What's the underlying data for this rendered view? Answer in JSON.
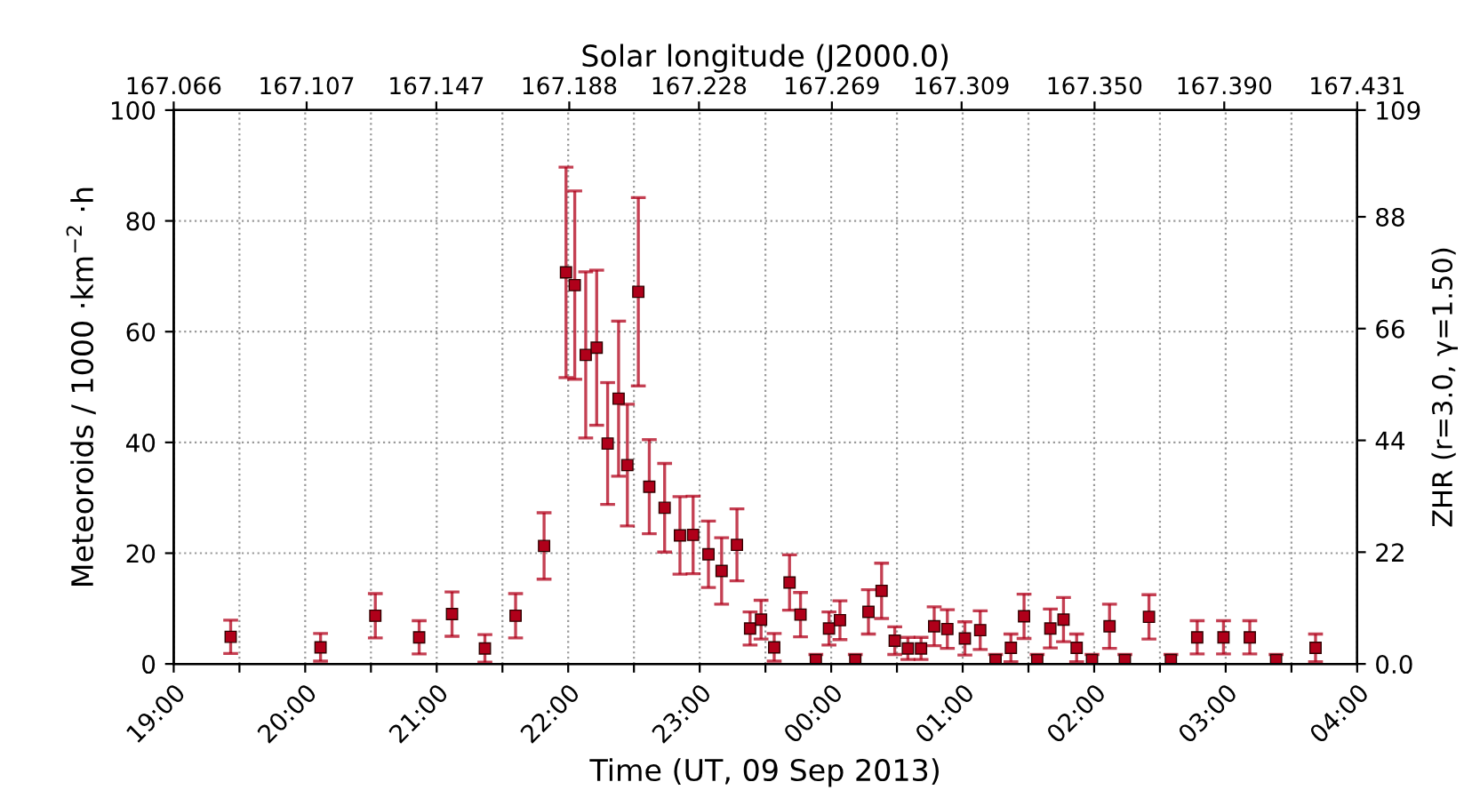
{
  "chart_data": {
    "type": "scatter",
    "xlabel": "Time (UT, 09 Sep 2013)",
    "ylabel": "Meteoroids / 1000 ·km$^{−2}$ ·h",
    "y2label": "ZHR (r=3.0, γ=1.50)",
    "x2label": "Solar longitude (J2000.0)",
    "x": [
      "2013-09-09T19:26",
      "2013-09-09T20:07",
      "2013-09-09T20:32",
      "2013-09-09T20:52",
      "2013-09-09T21:07",
      "2013-09-09T21:22",
      "2013-09-09T21:36",
      "2013-09-09T21:49",
      "2013-09-09T21:59",
      "2013-09-09T22:03",
      "2013-09-09T22:08",
      "2013-09-09T22:13",
      "2013-09-09T22:18",
      "2013-09-09T22:23",
      "2013-09-09T22:27",
      "2013-09-09T22:32",
      "2013-09-09T22:37",
      "2013-09-09T22:44",
      "2013-09-09T22:51",
      "2013-09-09T22:57",
      "2013-09-09T23:04",
      "2013-09-09T23:10",
      "2013-09-09T23:17",
      "2013-09-09T23:23",
      "2013-09-09T23:28",
      "2013-09-09T23:34",
      "2013-09-09T23:41",
      "2013-09-09T23:46",
      "2013-09-09T23:53",
      "2013-09-09T23:59",
      "2013-09-10T00:04",
      "2013-09-10T00:11",
      "2013-09-10T00:17",
      "2013-09-10T00:23",
      "2013-09-10T00:29",
      "2013-09-10T00:35",
      "2013-09-10T00:41",
      "2013-09-10T00:47",
      "2013-09-10T00:53",
      "2013-09-10T01:01",
      "2013-09-10T01:08",
      "2013-09-10T01:15",
      "2013-09-10T01:22",
      "2013-09-10T01:28",
      "2013-09-10T01:34",
      "2013-09-10T01:40",
      "2013-09-10T01:46",
      "2013-09-10T01:52",
      "2013-09-10T01:59",
      "2013-09-10T02:07",
      "2013-09-10T02:14",
      "2013-09-10T02:25",
      "2013-09-10T02:35",
      "2013-09-10T02:47",
      "2013-09-10T02:59",
      "2013-09-10T03:11",
      "2013-09-10T03:23",
      "2013-09-10T03:41"
    ],
    "series": [
      {
        "color": "#b0001a",
        "values": [
          4.9,
          3.0,
          8.7,
          4.8,
          9.0,
          2.8,
          8.7,
          21.3,
          70.7,
          68.4,
          55.8,
          57.1,
          39.8,
          47.9,
          35.9,
          67.2,
          32.0,
          28.2,
          23.2,
          23.3,
          19.8,
          16.8,
          21.5,
          6.4,
          8.0,
          3.0,
          14.7,
          8.9,
          0.7,
          6.4,
          7.9,
          0.7,
          9.4,
          13.2,
          4.2,
          2.8,
          2.8,
          6.8,
          6.3,
          4.6,
          6.1,
          0.7,
          2.9,
          8.6,
          0.7,
          6.4,
          8.0,
          2.9,
          0.7,
          6.8,
          0.7,
          8.5,
          0.7,
          4.8,
          4.8,
          4.8,
          0.7,
          2.9
        ],
        "errors": [
          3,
          2.5,
          4,
          3,
          4,
          2.5,
          4,
          6,
          19,
          17,
          15,
          14,
          11,
          14,
          11,
          17,
          8.5,
          8,
          7,
          7,
          6,
          6,
          6.5,
          3,
          3.5,
          2.5,
          5,
          4,
          1,
          3,
          3.5,
          1,
          4,
          5,
          2.5,
          2,
          2,
          3.5,
          3.5,
          3,
          3.5,
          1,
          2.5,
          4,
          1,
          3.5,
          4,
          2.5,
          1,
          4,
          1,
          4,
          1,
          3,
          3,
          3,
          1,
          2.5
        ]
      }
    ],
    "marker": "square",
    "grid": true,
    "xlim": [
      "2013-09-09T19:00",
      "2013-09-10T04:00"
    ],
    "xticks": [
      {
        "value": "2013-09-09T19:00",
        "label": "19:00"
      },
      {
        "value": "2013-09-09T19:30",
        "label": null
      },
      {
        "value": "2013-09-09T20:00",
        "label": "20:00"
      },
      {
        "value": "2013-09-09T20:30",
        "label": null
      },
      {
        "value": "2013-09-09T21:00",
        "label": "21:00"
      },
      {
        "value": "2013-09-09T21:30",
        "label": null
      },
      {
        "value": "2013-09-09T22:00",
        "label": "22:00"
      },
      {
        "value": "2013-09-09T22:30",
        "label": null
      },
      {
        "value": "2013-09-09T23:00",
        "label": "23:00"
      },
      {
        "value": "2013-09-09T23:30",
        "label": null
      },
      {
        "value": "2013-09-10T00:00",
        "label": "00:00"
      },
      {
        "value": "2013-09-10T00:30",
        "label": null
      },
      {
        "value": "2013-09-10T01:00",
        "label": "01:00"
      },
      {
        "value": "2013-09-10T01:30",
        "label": null
      },
      {
        "value": "2013-09-10T02:00",
        "label": "02:00"
      },
      {
        "value": "2013-09-10T02:30",
        "label": null
      },
      {
        "value": "2013-09-10T03:00",
        "label": "03:00"
      },
      {
        "value": "2013-09-10T03:30",
        "label": null
      },
      {
        "value": "2013-09-10T04:00",
        "label": "04:00"
      }
    ],
    "ylim": [
      0,
      100
    ],
    "yticks": [
      0,
      20,
      40,
      60,
      80,
      100
    ],
    "y2lim": [
      0,
      109
    ],
    "y2ticks": [
      {
        "value": 0,
        "label": "0.0"
      },
      22,
      44,
      66,
      88,
      109
    ],
    "x2lim": [
      167.066,
      167.431
    ],
    "x2ticks": [
      167.066,
      167.107,
      167.147,
      167.188,
      167.228,
      167.269,
      167.309,
      {
        "value": 167.35,
        "label": "167.350"
      },
      {
        "value": 167.39,
        "label": "167.390"
      },
      167.431
    ]
  }
}
